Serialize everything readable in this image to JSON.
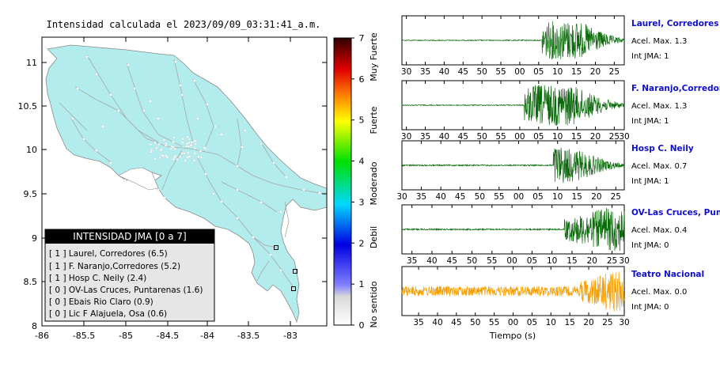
{
  "map": {
    "title": "Intensidad calculada el 2023/09/09_03:31:41_a.m.",
    "x_ticks": [
      "-86",
      "-85.5",
      "-85",
      "-84.5",
      "-84",
      "-83.5",
      "-83"
    ],
    "y_ticks": [
      "11",
      "10.5",
      "10",
      "9.5",
      "9",
      "8.5",
      "8"
    ],
    "land_color": "#b3ecec",
    "legend": {
      "title": "INTENSIDAD JMA [0 a 7]",
      "items": [
        "[ 1 ]  Laurel, Corredores (6.5)",
        "[ 1 ]  F. Naranjo,Corredores (5.2)",
        "[ 1 ]  Hosp C. Neily (2.4)",
        "[ 0 ]  OV-Las Cruces, Puntarenas (1.6)",
        "[ 0 ]  Ebais Rio Claro (0.9)",
        "[ 0 ]  Lic F Alajuela, Osa (0.6)"
      ]
    }
  },
  "colorbar": {
    "ticks": [
      "0",
      "1",
      "2",
      "3",
      "4",
      "5",
      "6",
      "7"
    ],
    "categories": [
      "No sentido",
      "Debil",
      "Moderado",
      "Fuerte",
      "Muy Fuerte"
    ]
  },
  "traces": [
    {
      "name": "Laurel, Corredores",
      "accel": "Acel. Max. 1.3",
      "int": "Int JMA: 1",
      "color": "#0a6b0a",
      "ticks": [
        "30",
        "35",
        "40",
        "45",
        "50",
        "55",
        "00",
        "05",
        "10",
        "15",
        "20",
        "25"
      ],
      "tick_pos": [
        0.02,
        0.105,
        0.19,
        0.275,
        0.36,
        0.445,
        0.53,
        0.615,
        0.7,
        0.785,
        0.87,
        0.955
      ],
      "onset": 0.63,
      "amp": 0.85,
      "decay": 0.15,
      "noise": 0.02
    },
    {
      "name": "F. Naranjo,Corredores",
      "accel": "Acel. Max. 1.3",
      "int": "Int JMA: 1",
      "color": "#0a6b0a",
      "ticks": [
        "30",
        "35",
        "40",
        "45",
        "50",
        "55",
        "00",
        "05",
        "10",
        "15",
        "20",
        "25",
        "30"
      ],
      "tick_pos": [
        0.02,
        0.105,
        0.19,
        0.275,
        0.36,
        0.445,
        0.53,
        0.615,
        0.7,
        0.785,
        0.87,
        0.955,
        1.0
      ],
      "onset": 0.55,
      "amp": 0.9,
      "decay": 0.1,
      "noise": 0.02
    },
    {
      "name": "Hosp C. Neily",
      "accel": "Acel. Max. 0.7",
      "int": "Int JMA: 1",
      "color": "#0a6b0a",
      "ticks": [
        "30",
        "35",
        "40",
        "45",
        "50",
        "55",
        "00",
        "05",
        "10",
        "15",
        "20",
        "25"
      ],
      "tick_pos": [
        0.0,
        0.087,
        0.175,
        0.262,
        0.35,
        0.437,
        0.525,
        0.612,
        0.7,
        0.787,
        0.875,
        0.962
      ],
      "onset": 0.68,
      "amp": 0.9,
      "decay": 0.6,
      "noise": 0.03
    },
    {
      "name": "OV-Las Cruces, Puntar",
      "accel": "Acel. Max. 0.4",
      "int": "Int JMA: 0",
      "color": "#0a6b0a",
      "ticks": [
        "35",
        "40",
        "45",
        "50",
        "55",
        "00",
        "05",
        "10",
        "15",
        "20",
        "25",
        "30"
      ],
      "tick_pos": [
        0.045,
        0.135,
        0.225,
        0.315,
        0.405,
        0.495,
        0.585,
        0.675,
        0.765,
        0.855,
        0.945,
        1.0
      ],
      "onset": 0.73,
      "amp": 0.95,
      "decay": 0.0,
      "noise": 0.03
    },
    {
      "name": "Teatro Nacional",
      "accel": "Acel. Max. 0.0",
      "int": "Int JMA: 0",
      "color": "#f5a000",
      "ticks": [
        "35",
        "40",
        "45",
        "50",
        "55",
        "00",
        "05",
        "10",
        "15",
        "20",
        "25",
        "30"
      ],
      "tick_pos": [
        0.075,
        0.16,
        0.245,
        0.33,
        0.415,
        0.5,
        0.585,
        0.67,
        0.755,
        0.84,
        0.925,
        1.0
      ],
      "onset": 0.8,
      "amp": 0.9,
      "decay": 0.0,
      "noise": 0.22
    }
  ],
  "time_label": "Tiempo (s)",
  "chart_data": {
    "type": "map",
    "title": "Intensidad calculada el 2023/09/09_03:31:41_a.m.",
    "xlim": [
      -86,
      -82.6
    ],
    "ylim": [
      8,
      11.3
    ],
    "colorbar_range": [
      0,
      7
    ],
    "stations": [
      {
        "name": "Laurel, Corredores",
        "jma": 1,
        "value": 6.5
      },
      {
        "name": "F. Naranjo,Corredores",
        "jma": 1,
        "value": 5.2
      },
      {
        "name": "Hosp C. Neily",
        "jma": 1,
        "value": 2.4
      },
      {
        "name": "OV-Las Cruces, Puntarenas",
        "jma": 0,
        "value": 1.6
      },
      {
        "name": "Ebais Rio Claro",
        "jma": 0,
        "value": 0.9
      },
      {
        "name": "Lic F Alajuela, Osa",
        "jma": 0,
        "value": 0.6
      }
    ],
    "waveforms": [
      {
        "name": "Laurel, Corredores",
        "acel_max": 1.3,
        "int_jma": 1
      },
      {
        "name": "F. Naranjo,Corredores",
        "acel_max": 1.3,
        "int_jma": 1
      },
      {
        "name": "Hosp C. Neily",
        "acel_max": 0.7,
        "int_jma": 1
      },
      {
        "name": "OV-Las Cruces, Puntar",
        "acel_max": 0.4,
        "int_jma": 0
      },
      {
        "name": "Teatro Nacional",
        "acel_max": 0.0,
        "int_jma": 0
      }
    ]
  }
}
